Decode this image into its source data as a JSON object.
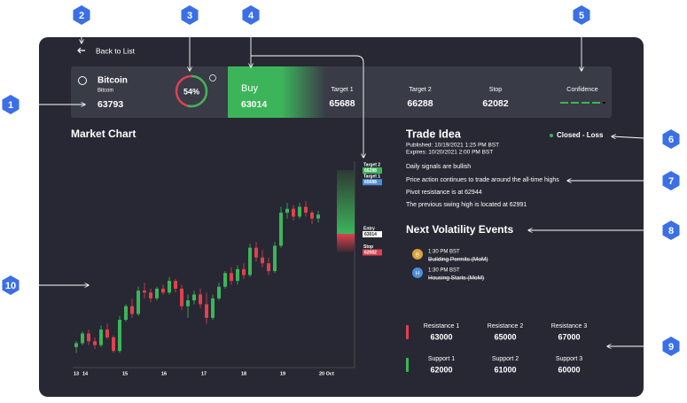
{
  "annotations": [
    "1",
    "2",
    "3",
    "4",
    "5",
    "6",
    "7",
    "8",
    "9",
    "10"
  ],
  "nav": {
    "back": "Back to List"
  },
  "header": {
    "name": "Bitcoin",
    "sub": "Bitcoin",
    "price": "63793",
    "score": {
      "value": 54,
      "label": "54%"
    },
    "action": "Buy",
    "entry": "63014",
    "target1_label": "Target 1",
    "target1": "65688",
    "target2_label": "Target 2",
    "target2": "66288",
    "stop_label": "Stop",
    "stop": "62082",
    "confidence_label": "Confidence"
  },
  "market_chart": {
    "title": "Market Chart",
    "x_labels": [
      "13",
      "14",
      "15",
      "16",
      "17",
      "18",
      "19",
      "20 Oct"
    ],
    "levels": [
      {
        "name": "Target 2",
        "value": 66288
      },
      {
        "name": "Target 1",
        "value": 65688
      },
      {
        "name": "Entry",
        "value": 63014
      },
      {
        "name": "Stop",
        "value": 62082
      }
    ],
    "candles": [
      [
        57200,
        57500,
        56900,
        57400
      ],
      [
        57400,
        58000,
        57300,
        57900
      ],
      [
        57900,
        58100,
        57300,
        57500
      ],
      [
        57500,
        57700,
        57100,
        57300
      ],
      [
        57300,
        58300,
        57200,
        58100
      ],
      [
        58100,
        58400,
        57600,
        57700
      ],
      [
        57700,
        57800,
        56900,
        57000
      ],
      [
        57000,
        58800,
        56900,
        58600
      ],
      [
        58600,
        59400,
        58500,
        59300
      ],
      [
        59300,
        59700,
        58700,
        58900
      ],
      [
        58900,
        60300,
        58800,
        60100
      ],
      [
        60100,
        60500,
        59700,
        60000
      ],
      [
        60000,
        60200,
        59500,
        59700
      ],
      [
        59700,
        60300,
        59600,
        60200
      ],
      [
        60200,
        60400,
        59900,
        60000
      ],
      [
        60000,
        60800,
        59900,
        60600
      ],
      [
        60600,
        60700,
        60000,
        60200
      ],
      [
        60200,
        60400,
        59100,
        59300
      ],
      [
        59300,
        59900,
        58700,
        59600
      ],
      [
        59600,
        60100,
        59400,
        59900
      ],
      [
        59900,
        60200,
        59200,
        59400
      ],
      [
        59400,
        60000,
        58400,
        58700
      ],
      [
        58700,
        59900,
        58600,
        59700
      ],
      [
        59700,
        60500,
        59600,
        60300
      ],
      [
        60300,
        61100,
        60200,
        61000
      ],
      [
        61000,
        61300,
        60400,
        60600
      ],
      [
        60600,
        61400,
        60400,
        61200
      ],
      [
        61200,
        61500,
        60700,
        60900
      ],
      [
        60900,
        62500,
        60800,
        62300
      ],
      [
        62300,
        62600,
        61600,
        61800
      ],
      [
        61800,
        62200,
        61300,
        61500
      ],
      [
        61500,
        61800,
        60900,
        61100
      ],
      [
        61100,
        62600,
        61000,
        62400
      ],
      [
        62400,
        64400,
        62300,
        64100
      ],
      [
        64100,
        64600,
        63800,
        64300
      ],
      [
        64300,
        64500,
        63700,
        63900
      ],
      [
        63900,
        64600,
        63800,
        64400
      ],
      [
        64400,
        64700,
        63900,
        64100
      ],
      [
        64100,
        64200,
        63500,
        63800
      ],
      [
        63800,
        64200,
        63600,
        64000
      ]
    ]
  },
  "trade_idea": {
    "title": "Trade Idea",
    "published": "Published: 10/19/2021 1:25 PM BST",
    "expires": "Expires: 10/20/2021 2:00 PM BST",
    "status": "Closed - Loss",
    "points": [
      "Daily signals are bullish",
      "Price action continues to trade around the all-time highs",
      "Pivot resistance is at 62944",
      "The previous swing high is located at 62991"
    ]
  },
  "volatility": {
    "title": "Next Volatility Events",
    "events": [
      {
        "icon": "B",
        "time": "1:30 PM BST",
        "name": "Building Permits (MoM)"
      },
      {
        "icon": "H",
        "time": "1:30 PM BST",
        "name": "Housing Starts (MoM)"
      }
    ]
  },
  "levels": {
    "resistance": [
      {
        "label": "Resistance 1",
        "value": "63000"
      },
      {
        "label": "Resistance 2",
        "value": "65000"
      },
      {
        "label": "Resistance 3",
        "value": "67000"
      }
    ],
    "support": [
      {
        "label": "Support 1",
        "value": "62000"
      },
      {
        "label": "Support 2",
        "value": "61000"
      },
      {
        "label": "Support 3",
        "value": "60000"
      }
    ]
  }
}
